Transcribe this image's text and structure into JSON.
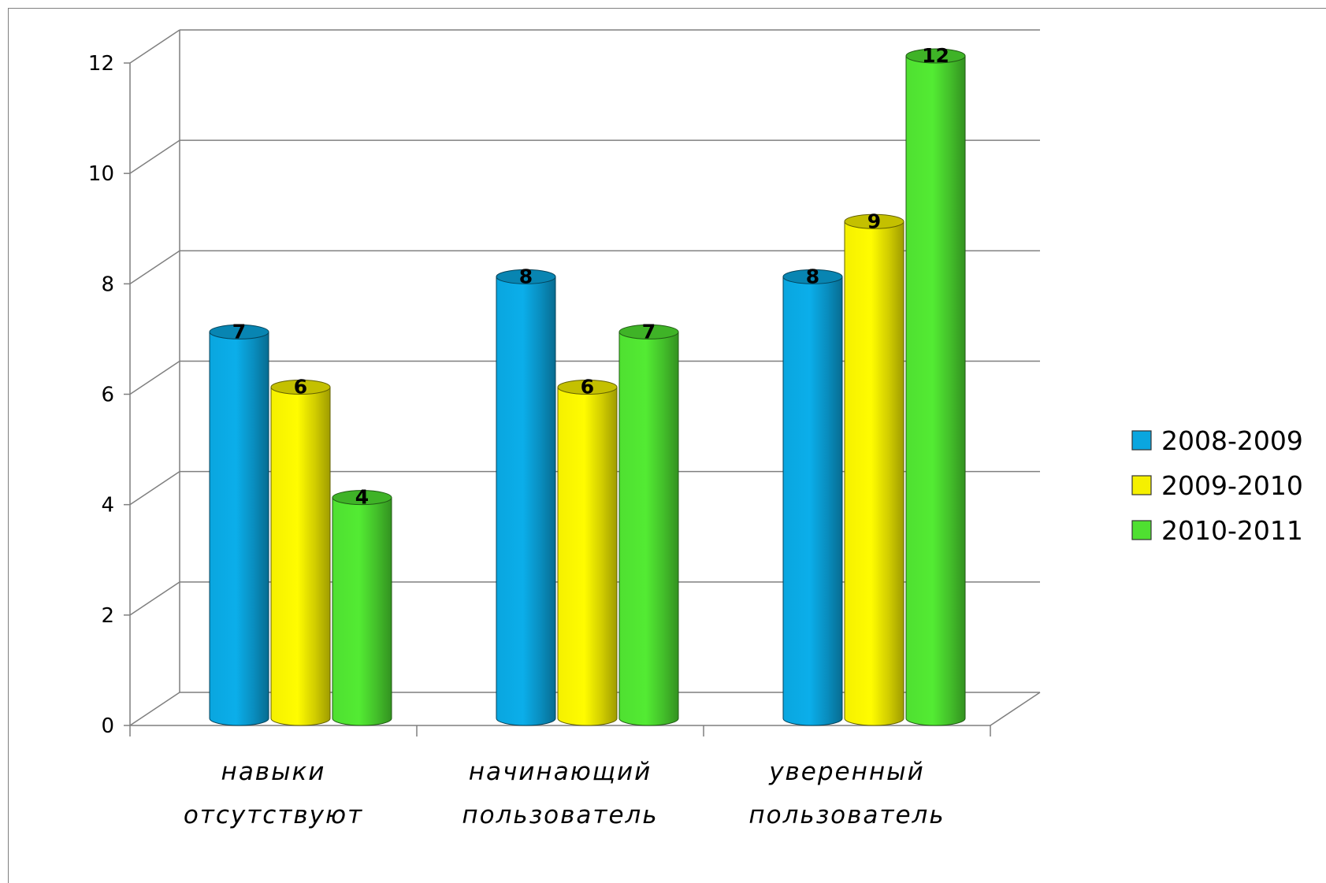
{
  "chart_data": {
    "type": "bar",
    "categories": [
      "навыки отсутствуют",
      "начинающий пользователь",
      "уверенный пользователь"
    ],
    "category_lines": [
      [
        "навыки",
        "отсутствуют"
      ],
      [
        "начинающий",
        "пользователь"
      ],
      [
        "уверенный",
        "пользователь"
      ]
    ],
    "series": [
      {
        "name": "2008-2009",
        "values": [
          7,
          8,
          8
        ],
        "color": "#0aa6df"
      },
      {
        "name": "2009-2010",
        "values": [
          6,
          6,
          9
        ],
        "color": "#f5f000"
      },
      {
        "name": "2010-2011",
        "values": [
          4,
          7,
          12
        ],
        "color": "#4fe031"
      }
    ],
    "ylim": [
      0,
      12
    ],
    "yticks": [
      0,
      2,
      4,
      6,
      8,
      10,
      12
    ],
    "grid": true,
    "legend": "right",
    "data_labels": true,
    "style": "3d-cylinder"
  }
}
